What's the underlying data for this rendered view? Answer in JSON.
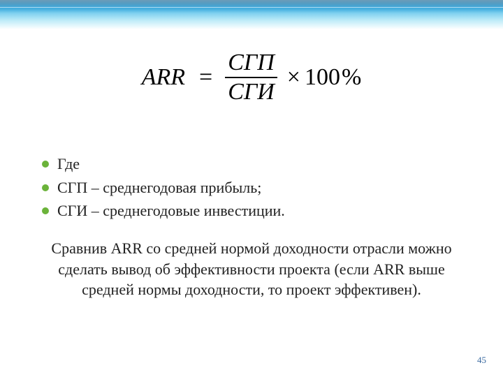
{
  "accent_color": "#6bb33a",
  "text_color": "#222222",
  "pagenum_color": "#3a6aa0",
  "formula": {
    "lhs": "ARR",
    "eq": "=",
    "numerator": "СГП",
    "denominator": "СГИ",
    "times": "×",
    "constant": "100",
    "percent": "%"
  },
  "bullets": [
    {
      "text": "Где"
    },
    {
      "text": "СГП – среднегодовая прибыль;"
    },
    {
      "text": "СГИ – среднегодовые инвестиции."
    }
  ],
  "paragraph": "Сравнив ARR со средней нормой доходности отрасли можно сделать вывод об эффективности проекта (если ARR выше средней нормы доходности, то проект эффективен).",
  "page_number": "45"
}
